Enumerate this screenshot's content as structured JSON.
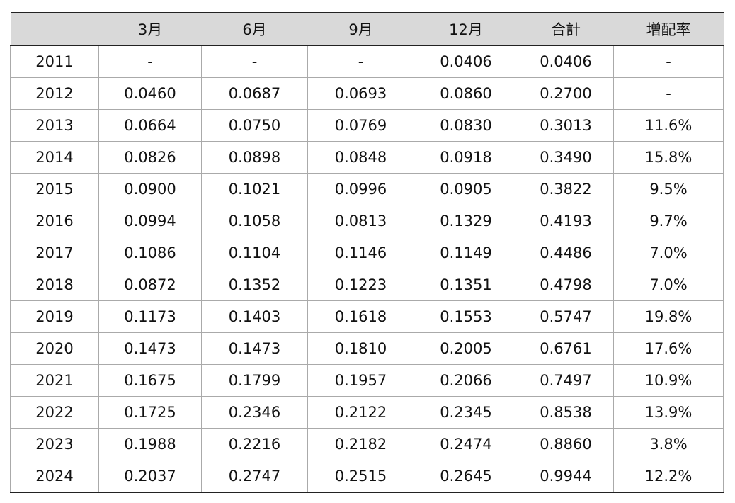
{
  "table": {
    "header": [
      "3月",
      "6月",
      "9月",
      "12月",
      "合計",
      "増配率"
    ],
    "rows": [
      [
        "2011",
        "-",
        "-",
        "-",
        "0.0406",
        "0.0406",
        "-"
      ],
      [
        "2012",
        "0.0460",
        "0.0687",
        "0.0693",
        "0.0860",
        "0.2700",
        "-"
      ],
      [
        "2013",
        "0.0664",
        "0.0750",
        "0.0769",
        "0.0830",
        "0.3013",
        "11.6%"
      ],
      [
        "2014",
        "0.0826",
        "0.0898",
        "0.0848",
        "0.0918",
        "0.3490",
        "15.8%"
      ],
      [
        "2015",
        "0.0900",
        "0.1021",
        "0.0996",
        "0.0905",
        "0.3822",
        "9.5%"
      ],
      [
        "2016",
        "0.0994",
        "0.1058",
        "0.0813",
        "0.1329",
        "0.4193",
        "9.7%"
      ],
      [
        "2017",
        "0.1086",
        "0.1104",
        "0.1146",
        "0.1149",
        "0.4486",
        "7.0%"
      ],
      [
        "2018",
        "0.0872",
        "0.1352",
        "0.1223",
        "0.1351",
        "0.4798",
        "7.0%"
      ],
      [
        "2019",
        "0.1173",
        "0.1403",
        "0.1618",
        "0.1553",
        "0.5747",
        "19.8%"
      ],
      [
        "2020",
        "0.1473",
        "0.1473",
        "0.1810",
        "0.2005",
        "0.6761",
        "17.6%"
      ],
      [
        "2021",
        "0.1675",
        "0.1799",
        "0.1957",
        "0.2066",
        "0.7497",
        "10.9%"
      ],
      [
        "2022",
        "0.1725",
        "0.2346",
        "0.2122",
        "0.2345",
        "0.8538",
        "13.9%"
      ],
      [
        "2023",
        "0.1988",
        "0.2216",
        "0.2182",
        "0.2474",
        "0.8860",
        "3.8%"
      ],
      [
        "2024",
        "0.2037",
        "0.2747",
        "0.2515",
        "0.2645",
        "0.9944",
        "12.2%"
      ]
    ]
  }
}
